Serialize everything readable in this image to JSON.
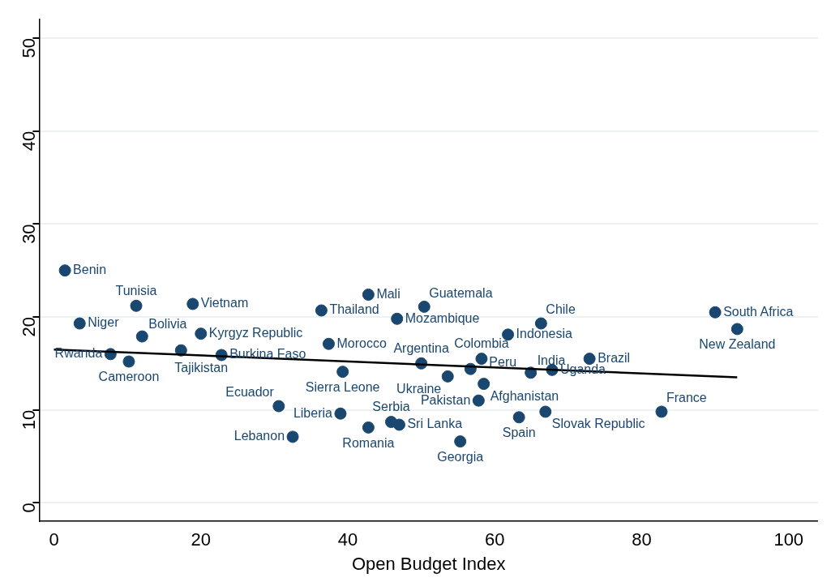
{
  "chart_data": {
    "type": "scatter",
    "xlabel": "Open Budget Index",
    "xlim": [
      -2,
      104
    ],
    "ylim": [
      -2,
      52
    ],
    "xticks": [
      0,
      20,
      40,
      60,
      80,
      100
    ],
    "yticks": [
      0,
      10,
      20,
      30,
      40,
      50
    ],
    "grid": "y",
    "legend": false,
    "marker": "circle",
    "series": [
      {
        "color": "#1a476f",
        "x": [
          1.5,
          11.2,
          18.9,
          3.5,
          12.0,
          20.0,
          7.7,
          10.2,
          17.3,
          22.8,
          30.6,
          32.5,
          42.8,
          36.4,
          50.4,
          46.7,
          37.4,
          39.3,
          50.0,
          58.2,
          56.7,
          53.6,
          58.5,
          57.8,
          39.0,
          45.9,
          47.0,
          42.8,
          55.3,
          63.3,
          66.9,
          64.9,
          67.8,
          66.3,
          61.8,
          72.9,
          82.7,
          90.0,
          93.0
        ],
        "values": [
          25.0,
          21.2,
          21.4,
          19.3,
          17.9,
          18.2,
          16.0,
          15.2,
          16.4,
          15.9,
          10.4,
          7.1,
          22.4,
          20.7,
          21.1,
          19.8,
          17.1,
          14.1,
          15.0,
          15.5,
          14.4,
          13.6,
          12.8,
          11.0,
          9.6,
          8.7,
          8.4,
          8.1,
          6.6,
          9.2,
          9.8,
          14.0,
          14.3,
          19.3,
          18.1,
          15.5,
          9.8,
          20.5,
          18.7
        ]
      },
      {
        "type": "line",
        "color": "#000000",
        "x": [
          0,
          93
        ],
        "values": [
          16.5,
          13.5
        ],
        "marker": "none"
      }
    ],
    "annotations": [
      {
        "text": "Benin",
        "x": 1.5,
        "y": 25.0
      },
      {
        "text": "Tunisia",
        "x": 11.2,
        "y": 21.2
      },
      {
        "text": "Vietnam",
        "x": 18.9,
        "y": 21.4
      },
      {
        "text": "Niger",
        "x": 3.5,
        "y": 19.3
      },
      {
        "text": "Bolivia",
        "x": 12.0,
        "y": 17.9
      },
      {
        "text": "Kyrgyz Republic",
        "x": 20.0,
        "y": 18.2
      },
      {
        "text": "Rwanda",
        "x": 7.7,
        "y": 16.0
      },
      {
        "text": "Cameroon",
        "x": 10.2,
        "y": 15.2
      },
      {
        "text": "Tajikistan",
        "x": 17.3,
        "y": 16.4
      },
      {
        "text": "Burkina Faso",
        "x": 22.8,
        "y": 15.9
      },
      {
        "text": "Ecuador",
        "x": 30.6,
        "y": 10.4
      },
      {
        "text": "Lebanon",
        "x": 32.5,
        "y": 7.1
      },
      {
        "text": "Mali",
        "x": 42.8,
        "y": 22.4
      },
      {
        "text": "Thailand",
        "x": 36.4,
        "y": 20.7
      },
      {
        "text": "Guatemala",
        "x": 50.4,
        "y": 21.1
      },
      {
        "text": "Mozambique",
        "x": 46.7,
        "y": 19.8
      },
      {
        "text": "Morocco",
        "x": 37.4,
        "y": 17.1
      },
      {
        "text": "Sierra Leone",
        "x": 39.3,
        "y": 14.1
      },
      {
        "text": "Argentina",
        "x": 50.0,
        "y": 15.0
      },
      {
        "text": "Colombia",
        "x": 58.2,
        "y": 15.5
      },
      {
        "text": "Peru",
        "x": 56.7,
        "y": 14.4
      },
      {
        "text": "Ukraine",
        "x": 53.6,
        "y": 13.6
      },
      {
        "text": "Afghanistan",
        "x": 58.5,
        "y": 12.8
      },
      {
        "text": "Pakistan",
        "x": 57.8,
        "y": 11.0
      },
      {
        "text": "Liberia",
        "x": 39.0,
        "y": 9.6
      },
      {
        "text": "Serbia",
        "x": 45.9,
        "y": 8.7
      },
      {
        "text": "Sri Lanka",
        "x": 47.0,
        "y": 8.4
      },
      {
        "text": "Romania",
        "x": 42.8,
        "y": 8.1
      },
      {
        "text": "Georgia",
        "x": 55.3,
        "y": 6.6
      },
      {
        "text": "Spain",
        "x": 63.3,
        "y": 9.2
      },
      {
        "text": "Slovak Republic",
        "x": 66.9,
        "y": 9.8
      },
      {
        "text": "India",
        "x": 64.9,
        "y": 14.0
      },
      {
        "text": "Uganda",
        "x": 67.8,
        "y": 14.3
      },
      {
        "text": "Chile",
        "x": 66.3,
        "y": 19.3
      },
      {
        "text": "Indonesia",
        "x": 61.8,
        "y": 18.1
      },
      {
        "text": "Brazil",
        "x": 72.9,
        "y": 15.5
      },
      {
        "text": "France",
        "x": 82.7,
        "y": 9.8
      },
      {
        "text": "South Africa",
        "x": 90.0,
        "y": 20.5
      },
      {
        "text": "New Zealand",
        "x": 93.0,
        "y": 18.7
      }
    ]
  }
}
